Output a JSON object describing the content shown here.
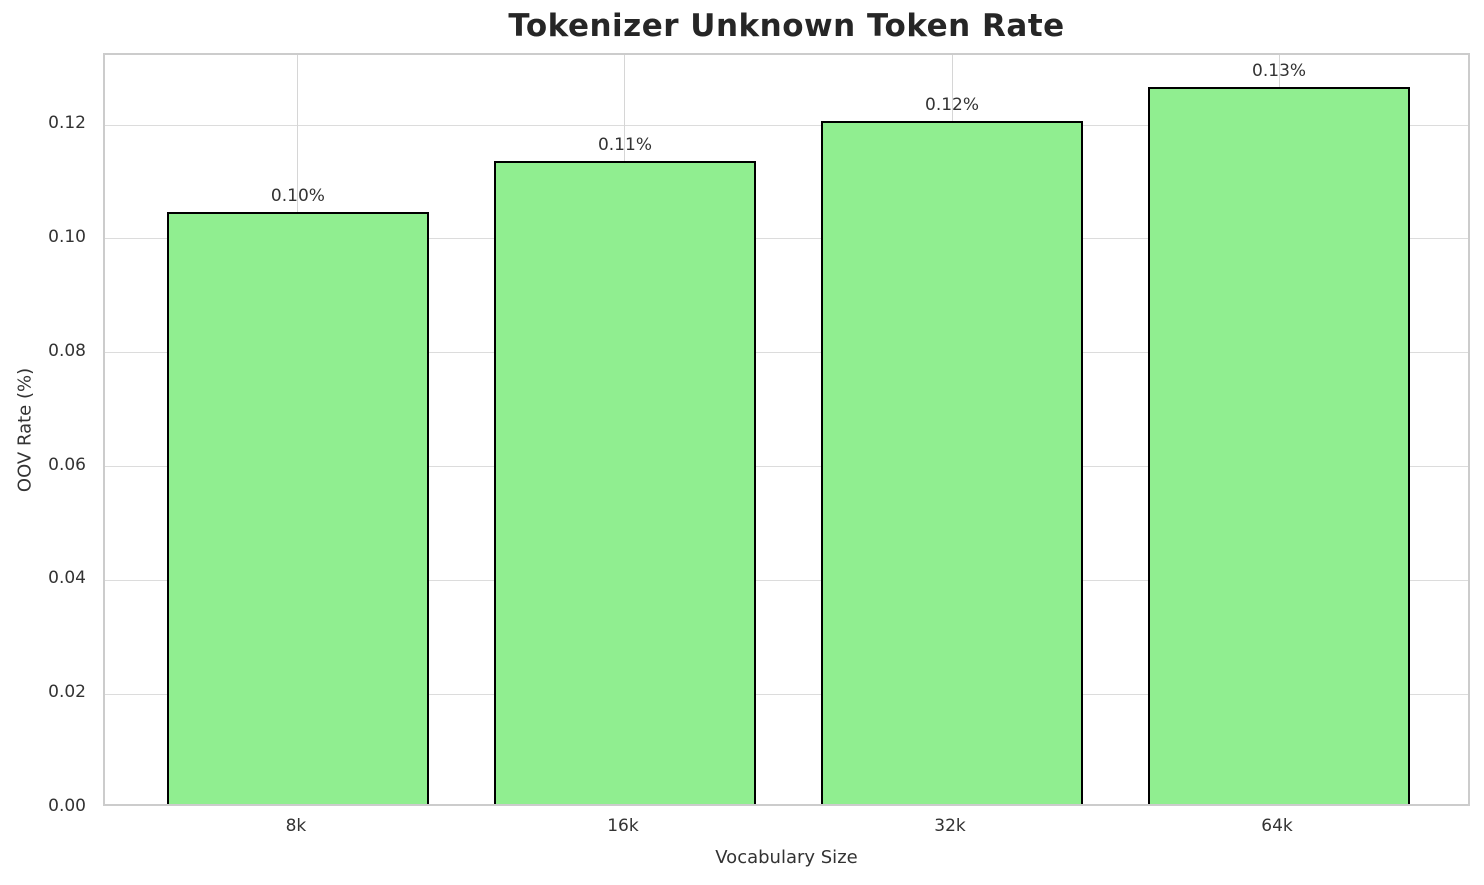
{
  "chart_data": {
    "type": "bar",
    "title": "Tokenizer Unknown Token Rate",
    "xlabel": "Vocabulary Size",
    "ylabel": "OOV Rate (%)",
    "categories": [
      "8k",
      "16k",
      "32k",
      "64k"
    ],
    "values": [
      0.104,
      0.113,
      0.12,
      0.126
    ],
    "bar_labels": [
      "0.10%",
      "0.11%",
      "0.12%",
      "0.13%"
    ],
    "yticks": [
      "0.00",
      "0.02",
      "0.04",
      "0.06",
      "0.08",
      "0.10",
      "0.12"
    ],
    "ylim": [
      0,
      0.1323
    ],
    "xlim": [
      -0.59,
      3.59
    ],
    "bar_width": 0.8,
    "grid": true,
    "legend_position": "none",
    "colors": {
      "bar_fill": "#90EE90",
      "bar_edge": "#000000",
      "grid_h": "#dcdcdc",
      "grid_v": "#d6d6d6",
      "spine": "#cccccc",
      "text": "#333333",
      "title": "#262626"
    }
  }
}
